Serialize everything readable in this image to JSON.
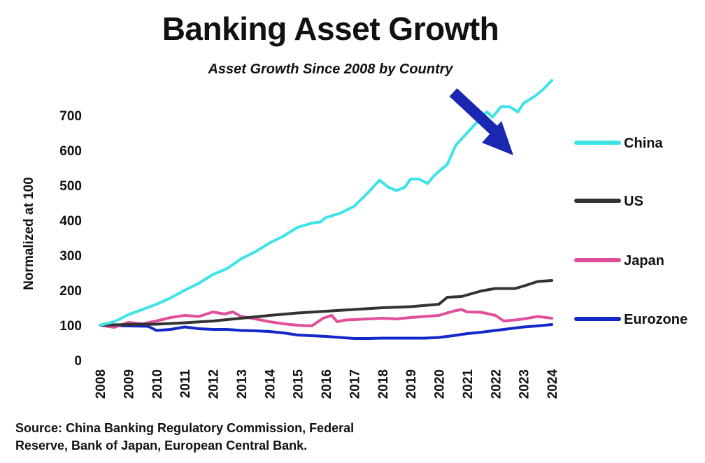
{
  "header": {
    "title": "Banking Asset Growth",
    "subtitle": "Asset Growth Since 2008 by Country"
  },
  "footer": {
    "source": "Source: China Banking Regulatory Commission, Federal Reserve, Bank of Japan, European Central Bank."
  },
  "chart_data": {
    "type": "line",
    "title": "Banking Asset Growth",
    "subtitle": "Asset Growth Since 2008 by Country",
    "xlabel": "",
    "ylabel": "Normalized at 100",
    "xlim": [
      2008,
      2024
    ],
    "ylim": [
      0,
      750
    ],
    "x_ticks": [
      "2008",
      "2009",
      "2010",
      "2011",
      "2012",
      "2013",
      "2014",
      "2015",
      "2016",
      "2017",
      "2018",
      "2019",
      "2020",
      "2021",
      "2022",
      "2023",
      "2024"
    ],
    "y_ticks": [
      0,
      100,
      200,
      300,
      400,
      500,
      600,
      700
    ],
    "grid": false,
    "legend_position": "right",
    "annotation": "arrow-pointing-down",
    "arrow_color": "#1a27b0",
    "series": [
      {
        "name": "China",
        "color": "#3ee3e8",
        "points": [
          [
            2008,
            100
          ],
          [
            2008.5,
            110
          ],
          [
            2009,
            130
          ],
          [
            2009.5,
            145
          ],
          [
            2010,
            160
          ],
          [
            2010.5,
            178
          ],
          [
            2011,
            200
          ],
          [
            2011.5,
            220
          ],
          [
            2012,
            245
          ],
          [
            2012.5,
            262
          ],
          [
            2013,
            290
          ],
          [
            2013.5,
            310
          ],
          [
            2014,
            335
          ],
          [
            2014.5,
            355
          ],
          [
            2015,
            380
          ],
          [
            2015.5,
            392
          ],
          [
            2015.8,
            395
          ],
          [
            2016,
            408
          ],
          [
            2016.5,
            420
          ],
          [
            2017,
            440
          ],
          [
            2017.5,
            480
          ],
          [
            2017.9,
            515
          ],
          [
            2018.2,
            495
          ],
          [
            2018.5,
            485
          ],
          [
            2018.8,
            495
          ],
          [
            2019,
            518
          ],
          [
            2019.3,
            518
          ],
          [
            2019.6,
            505
          ],
          [
            2019.8,
            525
          ],
          [
            2020,
            540
          ],
          [
            2020.3,
            560
          ],
          [
            2020.6,
            615
          ],
          [
            2021,
            650
          ],
          [
            2021.4,
            685
          ],
          [
            2021.7,
            710
          ],
          [
            2021.9,
            695
          ],
          [
            2022.2,
            725
          ],
          [
            2022.5,
            725
          ],
          [
            2022.8,
            710
          ],
          [
            2023,
            735
          ],
          [
            2023.4,
            755
          ],
          [
            2023.7,
            775
          ],
          [
            2024,
            800
          ]
        ]
      },
      {
        "name": "US",
        "color": "#333333",
        "points": [
          [
            2008,
            100
          ],
          [
            2009,
            102
          ],
          [
            2010,
            103
          ],
          [
            2011,
            107
          ],
          [
            2012,
            112
          ],
          [
            2013,
            120
          ],
          [
            2014,
            128
          ],
          [
            2015,
            135
          ],
          [
            2016,
            140
          ],
          [
            2017,
            145
          ],
          [
            2018,
            150
          ],
          [
            2019,
            153
          ],
          [
            2020,
            160
          ],
          [
            2020.3,
            180
          ],
          [
            2020.8,
            182
          ],
          [
            2021.5,
            198
          ],
          [
            2022,
            205
          ],
          [
            2022.7,
            205
          ],
          [
            2023,
            212
          ],
          [
            2023.5,
            225
          ],
          [
            2024,
            228
          ]
        ]
      },
      {
        "name": "Japan",
        "color": "#e0509a",
        "points": [
          [
            2008,
            100
          ],
          [
            2008.5,
            94
          ],
          [
            2009,
            108
          ],
          [
            2009.5,
            104
          ],
          [
            2010,
            112
          ],
          [
            2010.5,
            122
          ],
          [
            2011,
            128
          ],
          [
            2011.5,
            125
          ],
          [
            2012,
            138
          ],
          [
            2012.4,
            132
          ],
          [
            2012.7,
            138
          ],
          [
            2013,
            125
          ],
          [
            2013.5,
            118
          ],
          [
            2014,
            110
          ],
          [
            2014.5,
            104
          ],
          [
            2015,
            100
          ],
          [
            2015.5,
            98
          ],
          [
            2015.9,
            120
          ],
          [
            2016.2,
            128
          ],
          [
            2016.4,
            110
          ],
          [
            2016.7,
            115
          ],
          [
            2017,
            116
          ],
          [
            2017.5,
            118
          ],
          [
            2018,
            120
          ],
          [
            2018.5,
            118
          ],
          [
            2019,
            122
          ],
          [
            2019.5,
            125
          ],
          [
            2020,
            128
          ],
          [
            2020.5,
            140
          ],
          [
            2020.8,
            145
          ],
          [
            2021,
            138
          ],
          [
            2021.5,
            137
          ],
          [
            2022,
            128
          ],
          [
            2022.3,
            112
          ],
          [
            2022.7,
            115
          ],
          [
            2023,
            118
          ],
          [
            2023.5,
            125
          ],
          [
            2024,
            120
          ]
        ]
      },
      {
        "name": "Eurozone",
        "color": "#1228c8",
        "points": [
          [
            2008,
            100
          ],
          [
            2009,
            98
          ],
          [
            2009.7,
            97
          ],
          [
            2010,
            85
          ],
          [
            2010.5,
            88
          ],
          [
            2011,
            95
          ],
          [
            2011.5,
            90
          ],
          [
            2012,
            88
          ],
          [
            2012.5,
            88
          ],
          [
            2013,
            85
          ],
          [
            2013.5,
            84
          ],
          [
            2014,
            82
          ],
          [
            2014.5,
            78
          ],
          [
            2015,
            72
          ],
          [
            2015.5,
            70
          ],
          [
            2016,
            68
          ],
          [
            2016.5,
            65
          ],
          [
            2017,
            62
          ],
          [
            2017.5,
            62
          ],
          [
            2018,
            63
          ],
          [
            2018.5,
            63
          ],
          [
            2019,
            63
          ],
          [
            2019.5,
            63
          ],
          [
            2020,
            65
          ],
          [
            2020.5,
            70
          ],
          [
            2021,
            76
          ],
          [
            2021.5,
            80
          ],
          [
            2022,
            85
          ],
          [
            2022.5,
            90
          ],
          [
            2023,
            95
          ],
          [
            2023.5,
            98
          ],
          [
            2024,
            102
          ]
        ]
      }
    ]
  }
}
